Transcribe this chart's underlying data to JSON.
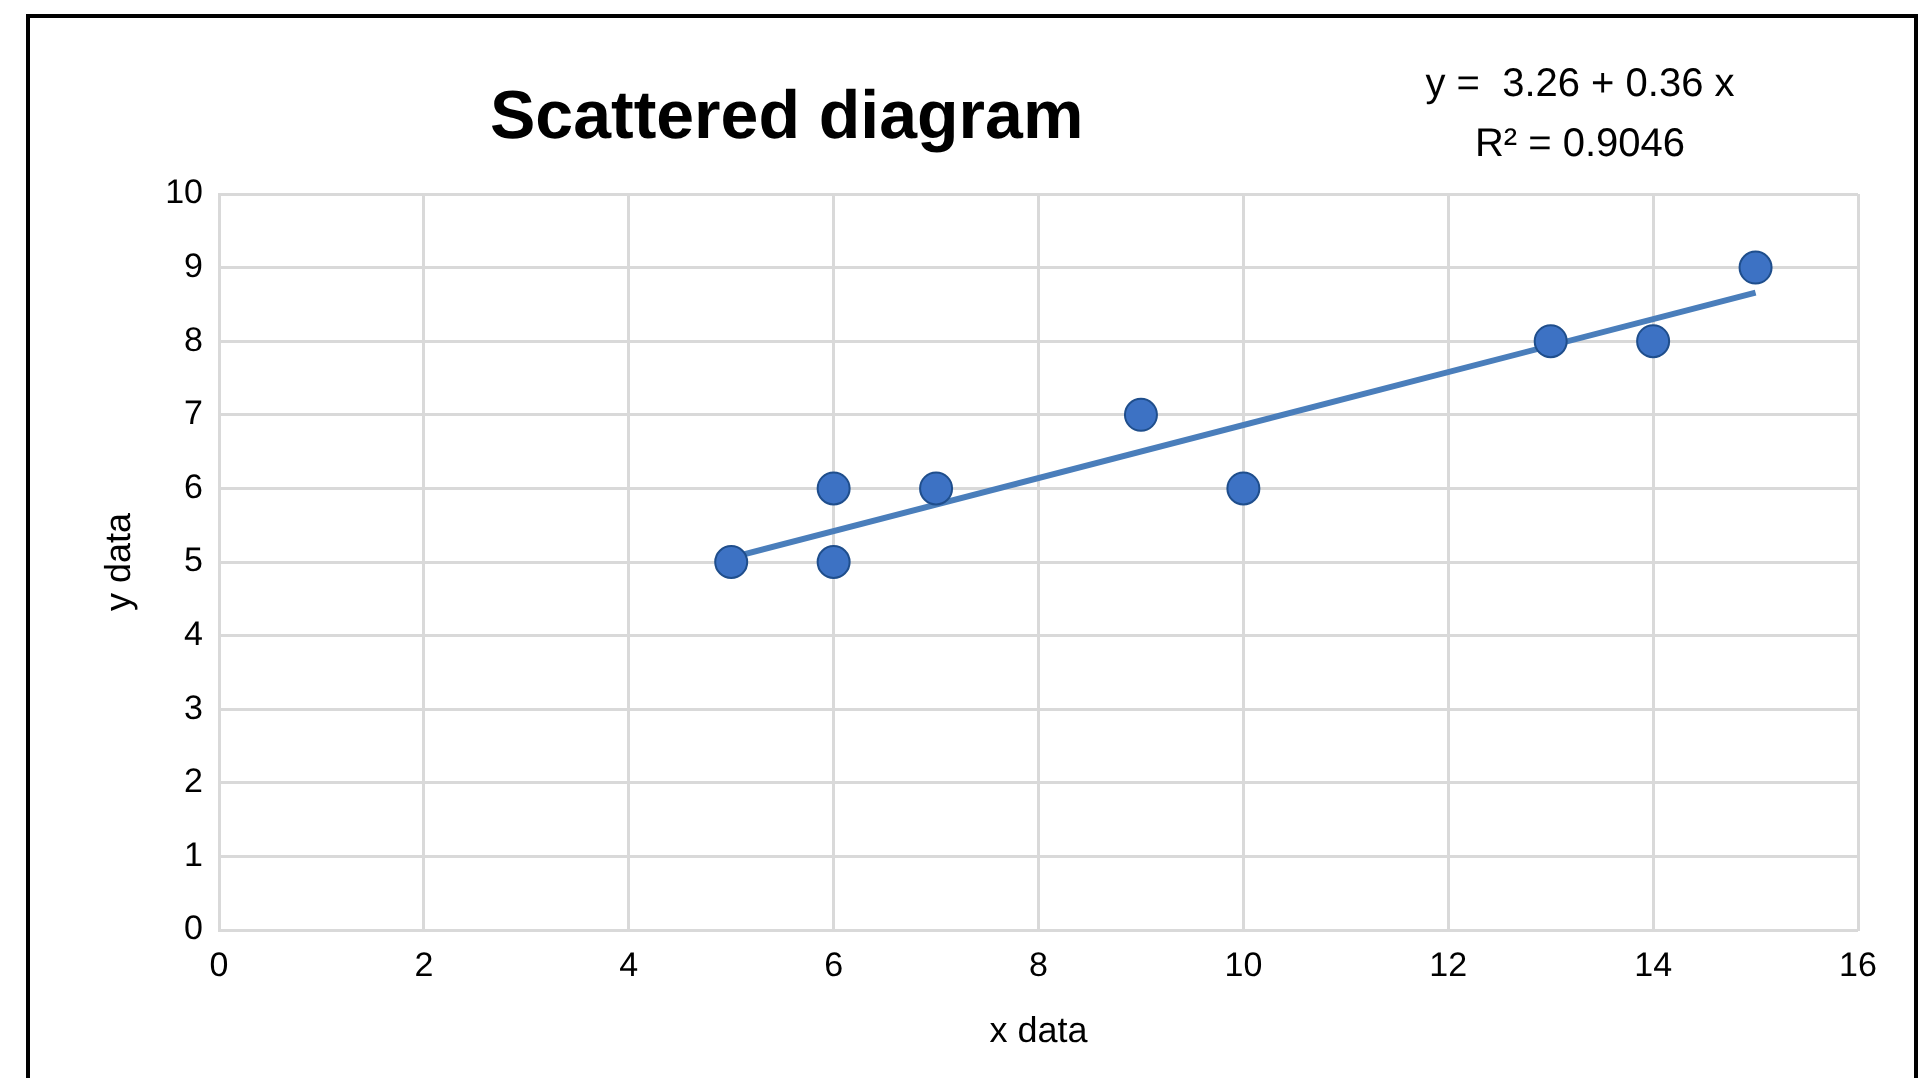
{
  "chart_data": {
    "type": "scatter",
    "title": "Scattered diagram",
    "xlabel": "x data",
    "ylabel": "y data",
    "annotations": [
      "y =  3.26 + 0.36 x",
      "R² = 0.9046"
    ],
    "series": [
      {
        "color": "#3d72c4",
        "marker": "circle",
        "x": [
          5,
          6,
          6,
          7,
          9,
          10,
          13,
          14,
          15
        ],
        "values": [
          5,
          6,
          5,
          6,
          7,
          6,
          8,
          8,
          9
        ]
      },
      {
        "type": "line",
        "marker": "none",
        "color": "#4a7ebb",
        "x": [
          5,
          15
        ],
        "values": [
          5.06,
          8.66
        ]
      }
    ],
    "xlim": [
      0,
      16
    ],
    "xticks": [
      0,
      2,
      4,
      6,
      8,
      10,
      12,
      14,
      16
    ],
    "ylim": [
      0,
      10
    ],
    "yticks": [
      0,
      1,
      2,
      3,
      4,
      5,
      6,
      7,
      8,
      9,
      10
    ],
    "grid": true,
    "legend": false
  }
}
